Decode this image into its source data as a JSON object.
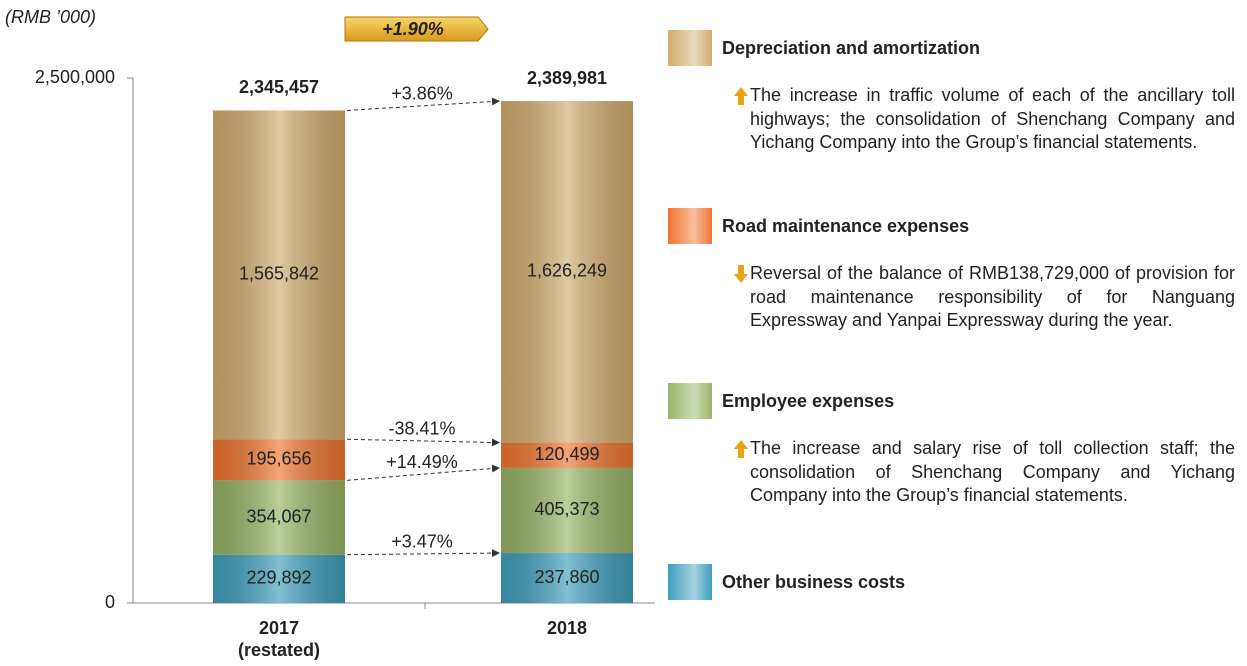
{
  "chart_data": {
    "type": "stacked_bar",
    "unit": "(RMB ’000)",
    "total_change": "+1.90%",
    "categories": [
      "2017 (restated)",
      "2018"
    ],
    "ylim": [
      0,
      2500000
    ],
    "yticks": [
      0,
      {
        "value": 2500000,
        "label": "2,500,000"
      }
    ],
    "totals": [
      2345457,
      2389981
    ],
    "totals_labels": [
      "2,345,457",
      "2,389,981"
    ],
    "series": [
      {
        "name": "Other business costs",
        "color": "#3f9fbc",
        "values": [
          229892,
          237860
        ],
        "value_labels": [
          "229,892",
          "237,860"
        ],
        "change": "+3.47%"
      },
      {
        "name": "Employee expenses",
        "color": "#98b467",
        "values": [
          354067,
          405373
        ],
        "value_labels": [
          "354,067",
          "405,373"
        ],
        "change": "+14.49%",
        "trend": "up",
        "note": "The increase and salary rise of toll collection staff; the consolidation of Shenchang Company and Yichang Company into the Group’s financial statements."
      },
      {
        "name": "Road maintenance expenses",
        "color": "#f07530",
        "values": [
          195656,
          120499
        ],
        "value_labels": [
          "195,656",
          "120,499"
        ],
        "change": "-38.41%",
        "trend": "down",
        "note": "Reversal of the balance of RMB138,729,000 of provision for road maintenance responsibility of for Nanguang Expressway and Yanpai Expressway during the year."
      },
      {
        "name": "Depreciation and amortization",
        "color": "#d2ad6e",
        "values": [
          1565842,
          1626249
        ],
        "value_labels": [
          "1,565,842",
          "1,626,249"
        ],
        "change": "+3.86%",
        "trend": "up",
        "note": "The increase in traffic volume of each of the ancillary toll highways; the consolidation of Shenchang Company and Yichang Company into the Group’s financial statements."
      }
    ]
  }
}
